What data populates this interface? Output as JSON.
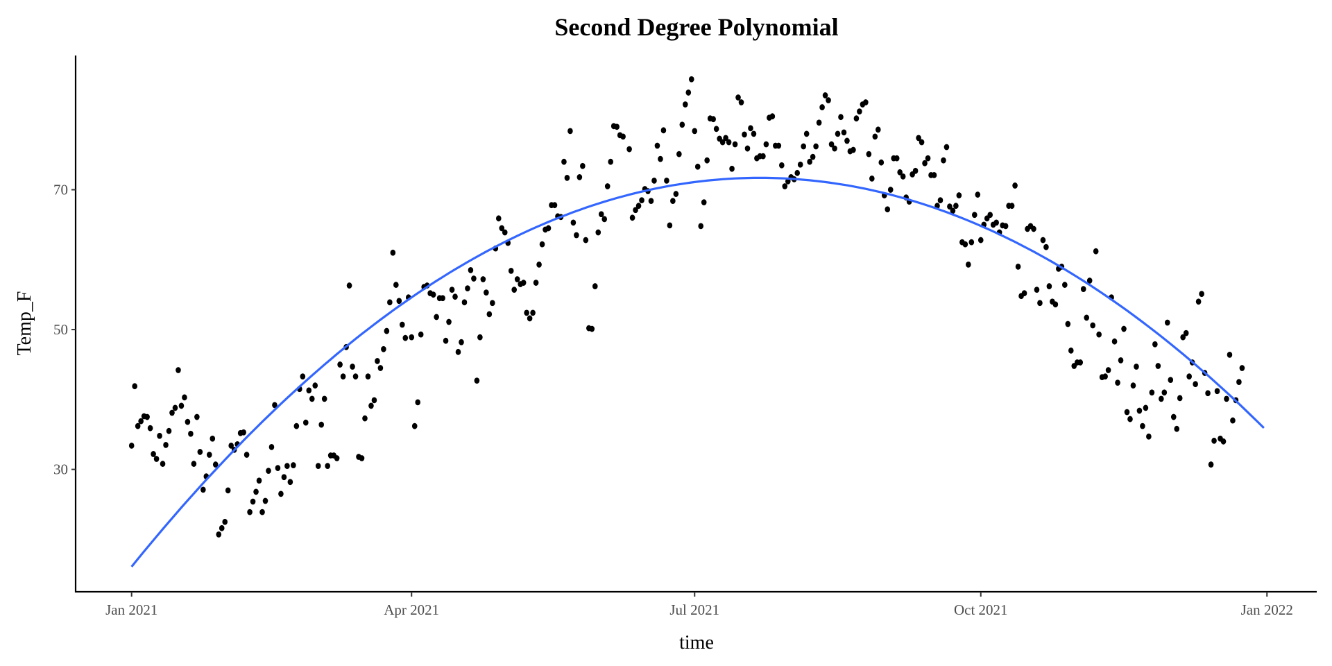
{
  "chart_data": {
    "type": "scatter",
    "title": "Second Degree Polynomial",
    "xlabel": "time",
    "ylabel": "Temp_F",
    "x_unit": "days since 2021-01-01",
    "xlim": [
      -18,
      381
    ],
    "ylim": [
      12.5,
      89.2
    ],
    "x_ticks": [
      {
        "value": 0,
        "label": "Jan 2021"
      },
      {
        "value": 90,
        "label": "Apr 2021"
      },
      {
        "value": 181,
        "label": "Jul 2021"
      },
      {
        "value": 273,
        "label": "Oct 2021"
      },
      {
        "value": 365,
        "label": "Jan 2022"
      }
    ],
    "y_ticks": [
      {
        "value": 30,
        "label": "30"
      },
      {
        "value": 50,
        "label": "50"
      },
      {
        "value": 70,
        "label": "70"
      }
    ],
    "grid": false,
    "colors": {
      "points": "#000000",
      "fit": "#3366FF",
      "ylabel": "#4a1420"
    },
    "fit": {
      "type": "quadratic",
      "form": "peak - k*(x - peak_x)^2",
      "peak_x": 202,
      "peak": 71.7,
      "k": 0.001363,
      "x_range": [
        0,
        364
      ]
    },
    "points": [
      [
        0,
        33.4
      ],
      [
        1,
        41.9
      ],
      [
        2,
        36.2
      ],
      [
        3,
        36.9
      ],
      [
        4,
        37.6
      ],
      [
        5,
        37.5
      ],
      [
        6,
        35.9
      ],
      [
        7,
        32.2
      ],
      [
        8,
        31.5
      ],
      [
        9,
        34.8
      ],
      [
        10,
        30.8
      ],
      [
        11,
        33.5
      ],
      [
        12,
        35.5
      ],
      [
        13,
        38.1
      ],
      [
        14,
        38.8
      ],
      [
        15,
        44.2
      ],
      [
        16,
        39.1
      ],
      [
        17,
        40.3
      ],
      [
        18,
        36.8
      ],
      [
        19,
        35.1
      ],
      [
        20,
        30.8
      ],
      [
        21,
        37.5
      ],
      [
        22,
        32.5
      ],
      [
        23,
        27.1
      ],
      [
        24,
        29.0
      ],
      [
        25,
        32.1
      ],
      [
        26,
        34.4
      ],
      [
        27,
        30.7
      ],
      [
        28,
        20.7
      ],
      [
        29,
        21.6
      ],
      [
        30,
        22.5
      ],
      [
        31,
        27.0
      ],
      [
        32,
        33.4
      ],
      [
        33,
        32.8
      ],
      [
        34,
        33.6
      ],
      [
        35,
        35.2
      ],
      [
        36,
        35.3
      ],
      [
        37,
        32.1
      ],
      [
        38,
        23.9
      ],
      [
        39,
        25.4
      ],
      [
        40,
        26.8
      ],
      [
        41,
        28.4
      ],
      [
        42,
        23.9
      ],
      [
        43,
        25.5
      ],
      [
        44,
        29.8
      ],
      [
        45,
        33.2
      ],
      [
        46,
        39.2
      ],
      [
        47,
        30.2
      ],
      [
        48,
        26.5
      ],
      [
        49,
        28.9
      ],
      [
        50,
        30.5
      ],
      [
        51,
        28.2
      ],
      [
        52,
        30.6
      ],
      [
        53,
        36.2
      ],
      [
        54,
        41.5
      ],
      [
        55,
        43.3
      ],
      [
        56,
        36.7
      ],
      [
        57,
        41.3
      ],
      [
        58,
        40.1
      ],
      [
        59,
        42.0
      ],
      [
        60,
        30.5
      ],
      [
        61,
        36.4
      ],
      [
        62,
        40.1
      ],
      [
        63,
        30.5
      ],
      [
        64,
        32.0
      ],
      [
        65,
        32.0
      ],
      [
        66,
        31.6
      ],
      [
        67,
        45.0
      ],
      [
        68,
        43.3
      ],
      [
        69,
        47.5
      ],
      [
        70,
        56.3
      ],
      [
        71,
        44.7
      ],
      [
        72,
        43.3
      ],
      [
        73,
        31.8
      ],
      [
        74,
        31.6
      ],
      [
        75,
        37.3
      ],
      [
        76,
        43.3
      ],
      [
        77,
        39.1
      ],
      [
        78,
        39.9
      ],
      [
        79,
        45.5
      ],
      [
        80,
        44.5
      ],
      [
        81,
        47.2
      ],
      [
        82,
        49.8
      ],
      [
        83,
        53.9
      ],
      [
        84,
        61.0
      ],
      [
        85,
        56.4
      ],
      [
        86,
        54.1
      ],
      [
        87,
        50.7
      ],
      [
        88,
        48.8
      ],
      [
        89,
        54.6
      ],
      [
        90,
        48.9
      ],
      [
        91,
        36.2
      ],
      [
        92,
        39.6
      ],
      [
        93,
        49.3
      ],
      [
        94,
        56.1
      ],
      [
        95,
        56.3
      ],
      [
        96,
        55.2
      ],
      [
        97,
        55.0
      ],
      [
        98,
        51.8
      ],
      [
        99,
        54.5
      ],
      [
        100,
        54.5
      ],
      [
        101,
        48.4
      ],
      [
        102,
        51.1
      ],
      [
        103,
        55.7
      ],
      [
        104,
        54.7
      ],
      [
        105,
        46.8
      ],
      [
        106,
        48.2
      ],
      [
        107,
        53.9
      ],
      [
        108,
        55.9
      ],
      [
        109,
        58.5
      ],
      [
        110,
        57.3
      ],
      [
        111,
        42.7
      ],
      [
        112,
        48.9
      ],
      [
        113,
        57.2
      ],
      [
        114,
        55.3
      ],
      [
        115,
        52.2
      ],
      [
        116,
        53.8
      ],
      [
        117,
        61.6
      ],
      [
        118,
        65.9
      ],
      [
        119,
        64.5
      ],
      [
        120,
        63.9
      ],
      [
        121,
        62.4
      ],
      [
        122,
        58.4
      ],
      [
        123,
        55.7
      ],
      [
        124,
        57.2
      ],
      [
        125,
        56.5
      ],
      [
        126,
        56.7
      ],
      [
        127,
        52.4
      ],
      [
        128,
        51.6
      ],
      [
        129,
        52.4
      ],
      [
        130,
        56.7
      ],
      [
        131,
        59.3
      ],
      [
        132,
        62.2
      ],
      [
        133,
        64.3
      ],
      [
        134,
        64.5
      ],
      [
        135,
        67.8
      ],
      [
        136,
        67.8
      ],
      [
        137,
        66.2
      ],
      [
        138,
        66.1
      ],
      [
        139,
        74.0
      ],
      [
        140,
        71.7
      ],
      [
        141,
        78.4
      ],
      [
        142,
        65.3
      ],
      [
        143,
        63.5
      ],
      [
        144,
        71.8
      ],
      [
        145,
        73.4
      ],
      [
        146,
        62.8
      ],
      [
        147,
        50.2
      ],
      [
        148,
        50.1
      ],
      [
        149,
        56.2
      ],
      [
        150,
        63.9
      ],
      [
        151,
        66.5
      ],
      [
        152,
        65.8
      ],
      [
        153,
        70.5
      ],
      [
        154,
        74.0
      ],
      [
        155,
        79.1
      ],
      [
        156,
        79.0
      ],
      [
        157,
        77.8
      ],
      [
        158,
        77.6
      ],
      [
        160,
        75.8
      ],
      [
        161,
        66.0
      ],
      [
        162,
        67.1
      ],
      [
        163,
        67.7
      ],
      [
        164,
        68.5
      ],
      [
        165,
        70.1
      ],
      [
        166,
        69.8
      ],
      [
        167,
        68.4
      ],
      [
        168,
        71.3
      ],
      [
        169,
        76.3
      ],
      [
        170,
        74.4
      ],
      [
        171,
        78.5
      ],
      [
        172,
        71.3
      ],
      [
        173,
        64.9
      ],
      [
        174,
        68.4
      ],
      [
        175,
        69.4
      ],
      [
        176,
        75.1
      ],
      [
        177,
        79.3
      ],
      [
        178,
        82.2
      ],
      [
        179,
        83.9
      ],
      [
        180,
        85.8
      ],
      [
        181,
        78.4
      ],
      [
        182,
        73.3
      ],
      [
        183,
        64.8
      ],
      [
        184,
        68.2
      ],
      [
        185,
        74.2
      ],
      [
        186,
        80.2
      ],
      [
        187,
        80.1
      ],
      [
        188,
        78.7
      ],
      [
        189,
        77.3
      ],
      [
        190,
        76.8
      ],
      [
        191,
        77.4
      ],
      [
        192,
        76.8
      ],
      [
        193,
        73.0
      ],
      [
        194,
        76.5
      ],
      [
        195,
        83.2
      ],
      [
        196,
        82.5
      ],
      [
        197,
        77.9
      ],
      [
        198,
        75.9
      ],
      [
        199,
        78.8
      ],
      [
        200,
        78.0
      ],
      [
        201,
        74.5
      ],
      [
        202,
        74.8
      ],
      [
        203,
        74.8
      ],
      [
        204,
        76.5
      ],
      [
        205,
        80.3
      ],
      [
        206,
        80.5
      ],
      [
        207,
        76.3
      ],
      [
        208,
        76.3
      ],
      [
        209,
        73.5
      ],
      [
        210,
        70.5
      ],
      [
        211,
        71.2
      ],
      [
        212,
        71.8
      ],
      [
        213,
        71.5
      ],
      [
        214,
        72.4
      ],
      [
        215,
        73.6
      ],
      [
        216,
        76.2
      ],
      [
        217,
        78.0
      ],
      [
        218,
        74.0
      ],
      [
        219,
        74.7
      ],
      [
        220,
        76.2
      ],
      [
        221,
        79.6
      ],
      [
        222,
        81.8
      ],
      [
        223,
        83.5
      ],
      [
        224,
        82.8
      ],
      [
        225,
        76.5
      ],
      [
        226,
        75.9
      ],
      [
        227,
        78.0
      ],
      [
        228,
        80.4
      ],
      [
        229,
        78.2
      ],
      [
        230,
        77.0
      ],
      [
        231,
        75.5
      ],
      [
        232,
        75.7
      ],
      [
        233,
        80.2
      ],
      [
        234,
        81.2
      ],
      [
        235,
        82.2
      ],
      [
        236,
        82.5
      ],
      [
        237,
        75.1
      ],
      [
        238,
        71.6
      ],
      [
        239,
        77.6
      ],
      [
        240,
        78.6
      ],
      [
        241,
        73.9
      ],
      [
        242,
        69.2
      ],
      [
        243,
        67.2
      ],
      [
        244,
        70.0
      ],
      [
        245,
        74.5
      ],
      [
        246,
        74.5
      ],
      [
        247,
        72.5
      ],
      [
        248,
        71.9
      ],
      [
        249,
        68.9
      ],
      [
        250,
        68.3
      ],
      [
        251,
        72.2
      ],
      [
        252,
        72.7
      ],
      [
        253,
        77.4
      ],
      [
        254,
        76.8
      ],
      [
        255,
        73.8
      ],
      [
        256,
        74.5
      ],
      [
        257,
        72.1
      ],
      [
        258,
        72.1
      ],
      [
        259,
        67.7
      ],
      [
        260,
        68.5
      ],
      [
        261,
        74.2
      ],
      [
        262,
        76.1
      ],
      [
        263,
        67.6
      ],
      [
        264,
        67.0
      ],
      [
        265,
        67.7
      ],
      [
        266,
        69.2
      ],
      [
        267,
        62.5
      ],
      [
        268,
        62.2
      ],
      [
        269,
        59.3
      ],
      [
        270,
        62.5
      ],
      [
        271,
        66.4
      ],
      [
        272,
        69.3
      ],
      [
        273,
        62.8
      ],
      [
        274,
        65.0
      ],
      [
        275,
        65.9
      ],
      [
        276,
        66.4
      ],
      [
        277,
        65.0
      ],
      [
        278,
        65.3
      ],
      [
        279,
        63.9
      ],
      [
        280,
        64.9
      ],
      [
        281,
        64.8
      ],
      [
        282,
        67.7
      ],
      [
        283,
        67.7
      ],
      [
        284,
        70.6
      ],
      [
        285,
        59.0
      ],
      [
        286,
        54.8
      ],
      [
        287,
        55.2
      ],
      [
        288,
        64.4
      ],
      [
        289,
        64.8
      ],
      [
        290,
        64.4
      ],
      [
        291,
        55.7
      ],
      [
        292,
        53.8
      ],
      [
        293,
        62.8
      ],
      [
        294,
        61.8
      ],
      [
        295,
        56.2
      ],
      [
        296,
        54.0
      ],
      [
        297,
        53.6
      ],
      [
        298,
        58.7
      ],
      [
        299,
        59.0
      ],
      [
        300,
        56.4
      ],
      [
        301,
        50.8
      ],
      [
        302,
        47.0
      ],
      [
        303,
        44.8
      ],
      [
        304,
        45.3
      ],
      [
        305,
        45.3
      ],
      [
        306,
        55.8
      ],
      [
        307,
        51.7
      ],
      [
        308,
        57.0
      ],
      [
        309,
        50.6
      ],
      [
        310,
        61.2
      ],
      [
        311,
        49.3
      ],
      [
        312,
        43.2
      ],
      [
        313,
        43.3
      ],
      [
        314,
        44.2
      ],
      [
        315,
        54.6
      ],
      [
        316,
        48.3
      ],
      [
        317,
        42.4
      ],
      [
        318,
        45.6
      ],
      [
        319,
        50.1
      ],
      [
        320,
        38.2
      ],
      [
        321,
        37.2
      ],
      [
        322,
        42.0
      ],
      [
        323,
        44.7
      ],
      [
        324,
        38.4
      ],
      [
        325,
        36.2
      ],
      [
        326,
        38.8
      ],
      [
        327,
        34.7
      ],
      [
        328,
        41.0
      ],
      [
        329,
        47.9
      ],
      [
        330,
        44.8
      ],
      [
        331,
        40.1
      ],
      [
        332,
        41.0
      ],
      [
        333,
        51.0
      ],
      [
        334,
        42.8
      ],
      [
        335,
        37.5
      ],
      [
        336,
        35.8
      ],
      [
        337,
        40.2
      ],
      [
        338,
        48.9
      ],
      [
        339,
        49.5
      ],
      [
        340,
        43.3
      ],
      [
        341,
        45.3
      ],
      [
        342,
        42.2
      ],
      [
        343,
        54.0
      ],
      [
        344,
        55.1
      ],
      [
        345,
        43.8
      ],
      [
        346,
        40.9
      ],
      [
        347,
        30.7
      ],
      [
        348,
        34.1
      ],
      [
        349,
        41.2
      ],
      [
        350,
        34.4
      ],
      [
        351,
        34.0
      ],
      [
        352,
        40.1
      ],
      [
        353,
        46.4
      ],
      [
        354,
        37.0
      ],
      [
        355,
        39.9
      ],
      [
        356,
        42.5
      ],
      [
        357,
        44.5
      ]
    ]
  }
}
